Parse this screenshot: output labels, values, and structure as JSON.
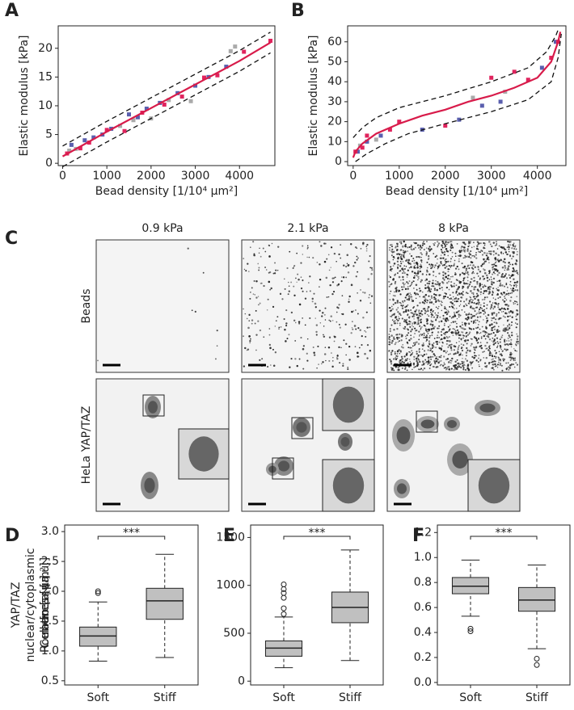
{
  "panels": [
    "A",
    "B",
    "C",
    "D",
    "E",
    "F"
  ],
  "image_grid": {
    "columns": [
      "0.9 kPa",
      "2.1 kPa",
      "8 kPa"
    ],
    "rows": [
      "Beads",
      "HeLa YAP/TAZ"
    ]
  },
  "chart_data": [
    {
      "type": "scatter",
      "xlabel": "Bead density [1/10⁴ µm²]",
      "ylabel": "Elastic modulus [kPa]",
      "xlim": [
        -100,
        4800
      ],
      "ylim": [
        -0.4,
        23.9
      ],
      "xticks": [
        0,
        1000,
        2000,
        3000,
        4000
      ],
      "yticks": [
        0,
        5,
        10,
        15,
        20
      ],
      "series": [
        {
          "mode": "markers",
          "color": "#aaaaaa",
          "x": [
            150,
            300,
            1300,
            1600,
            2000,
            2400,
            2900,
            3800,
            3900
          ],
          "values": [
            2.2,
            2.5,
            6.5,
            7.5,
            7.8,
            11.0,
            10.8,
            19.5,
            20.3
          ]
        },
        {
          "mode": "markers",
          "color": "#5a5fae",
          "x": [
            200,
            500,
            700,
            900,
            1100,
            1500,
            1700,
            1900,
            2200,
            2600,
            3000,
            3300,
            3700
          ],
          "values": [
            3.2,
            4.0,
            4.5,
            5.0,
            6.0,
            8.5,
            8.0,
            9.5,
            10.5,
            12.2,
            13.5,
            15.0,
            16.8
          ]
        },
        {
          "mode": "markers",
          "color": "#e0245e",
          "x": [
            100,
            400,
            600,
            1000,
            1400,
            1800,
            2300,
            2700,
            3200,
            3500,
            4100,
            4700
          ],
          "values": [
            1.7,
            2.6,
            3.6,
            5.8,
            5.6,
            8.8,
            10.2,
            11.6,
            14.9,
            15.3,
            19.4,
            21.3
          ]
        },
        {
          "mode": "line",
          "dash": true,
          "color": "#111111",
          "x": [
            0,
            1000,
            2000,
            3000,
            4000,
            4700
          ],
          "values": [
            3.0,
            7.3,
            11.4,
            15.5,
            19.6,
            22.8
          ]
        },
        {
          "mode": "line",
          "dash": true,
          "color": "#111111",
          "x": [
            0,
            1000,
            2000,
            3000,
            4000,
            4700
          ],
          "values": [
            -0.6,
            3.7,
            7.8,
            11.9,
            16.0,
            19.2
          ]
        },
        {
          "mode": "line",
          "dash": false,
          "color": "#d81b4a",
          "x": [
            0,
            1000,
            2000,
            3000,
            4000,
            4700
          ],
          "values": [
            1.2,
            5.5,
            9.6,
            13.7,
            17.8,
            21.0
          ]
        }
      ]
    },
    {
      "type": "scatter",
      "xlabel": "Bead density [1/10⁴ µm²]",
      "ylabel": "Elastic modulus [kPa]",
      "xlim": [
        -120,
        4620
      ],
      "ylim": [
        -2,
        68
      ],
      "xticks": [
        0,
        1000,
        2000,
        3000,
        4000
      ],
      "yticks": [
        0,
        10,
        20,
        30,
        40,
        50,
        60
      ],
      "series": [
        {
          "mode": "markers",
          "color": "#aaaaaa",
          "x": [
            150,
            500,
            2600,
            3300
          ],
          "values": [
            8,
            11,
            32,
            35
          ]
        },
        {
          "mode": "markers",
          "color": "#5a5fae",
          "x": [
            100,
            300,
            600,
            1500,
            2300,
            2800,
            3200,
            4100,
            4400
          ],
          "values": [
            5,
            10,
            13,
            16,
            21,
            28,
            30,
            47,
            60
          ]
        },
        {
          "mode": "markers",
          "color": "#e0245e",
          "x": [
            50,
            200,
            300,
            800,
            1000,
            2000,
            3000,
            3500,
            3800,
            4300,
            4450
          ],
          "values": [
            5,
            7,
            13,
            16,
            20,
            18,
            42,
            45,
            41,
            52,
            60
          ]
        },
        {
          "mode": "line",
          "dash": true,
          "color": "#111111",
          "x": [
            0,
            200,
            500,
            1000,
            2000,
            3000,
            3800,
            4200,
            4400,
            4450
          ],
          "values": [
            12,
            17,
            22,
            27,
            33,
            40,
            47,
            55,
            63,
            66
          ]
        },
        {
          "mode": "line",
          "dash": true,
          "color": "#111111",
          "x": [
            50,
            300,
            700,
            1200,
            2000,
            3000,
            3800,
            4300,
            4450,
            4520
          ],
          "values": [
            0,
            4,
            9,
            14,
            19,
            25,
            31,
            40,
            52,
            64
          ]
        },
        {
          "mode": "line",
          "dash": false,
          "color": "#d81b4a",
          "x": [
            0,
            50,
            200,
            500,
            1000,
            1500,
            2000,
            2500,
            3000,
            3500,
            4000,
            4300,
            4450,
            4500
          ],
          "values": [
            2,
            5,
            9,
            14,
            19,
            23,
            26,
            30,
            33,
            37,
            42,
            50,
            60,
            65
          ]
        }
      ]
    },
    {
      "type": "box",
      "ylabel": [
        "YAP/TAZ",
        "nuclear/cytoplasmic",
        "ratio [a.u.]"
      ],
      "categories": [
        "Soft",
        "Stiff"
      ],
      "color": "#c0c0c0",
      "annotation": "***",
      "ylim": [
        0.43,
        3.11
      ],
      "yticks": [
        0.5,
        {
          "value": 1,
          "label": "1.0"
        },
        1.5,
        {
          "value": 2,
          "label": "2.0"
        },
        2.5,
        {
          "value": 3,
          "label": "3.0"
        }
      ],
      "boxes": [
        {
          "whislo": 0.83,
          "q1": 1.08,
          "med": 1.25,
          "q3": 1.4,
          "whishi": 1.82,
          "fliers": [
            1.97,
            2.0
          ]
        },
        {
          "whislo": 0.89,
          "q1": 1.53,
          "med": 1.84,
          "q3": 2.05,
          "whishi": 2.62,
          "fliers": []
        }
      ]
    },
    {
      "type": "box",
      "ylabel": [
        "Cell area [µm²]"
      ],
      "categories": [
        "Soft",
        "Stiff"
      ],
      "color": "#c0c0c0",
      "annotation": "***",
      "ylim": [
        -40,
        1630
      ],
      "yticks": [
        0,
        500,
        1000,
        1500
      ],
      "boxes": [
        {
          "whislo": 140,
          "q1": 260,
          "med": 345,
          "q3": 420,
          "whishi": 670,
          "fliers": [
            700,
            760,
            870,
            920,
            960,
            1010
          ]
        },
        {
          "whislo": 215,
          "q1": 610,
          "med": 770,
          "q3": 930,
          "whishi": 1370,
          "fliers": []
        }
      ]
    },
    {
      "type": "box",
      "ylabel": [
        "Roundness [a.u.]"
      ],
      "categories": [
        "Soft",
        "Stiff"
      ],
      "color": "#c0c0c0",
      "annotation": "***",
      "ylim": [
        -0.02,
        1.26
      ],
      "yticks": [
        {
          "value": 0,
          "label": "0.0"
        },
        0.2,
        0.4,
        0.6,
        0.8,
        {
          "value": 1,
          "label": "1.0"
        },
        1.2
      ],
      "boxes": [
        {
          "whislo": 0.53,
          "q1": 0.71,
          "med": 0.77,
          "q3": 0.84,
          "whishi": 0.98,
          "fliers": [
            0.41,
            0.43
          ]
        },
        {
          "whislo": 0.27,
          "q1": 0.57,
          "med": 0.66,
          "q3": 0.76,
          "whishi": 0.94,
          "fliers": [
            0.19,
            0.14
          ]
        }
      ]
    }
  ]
}
